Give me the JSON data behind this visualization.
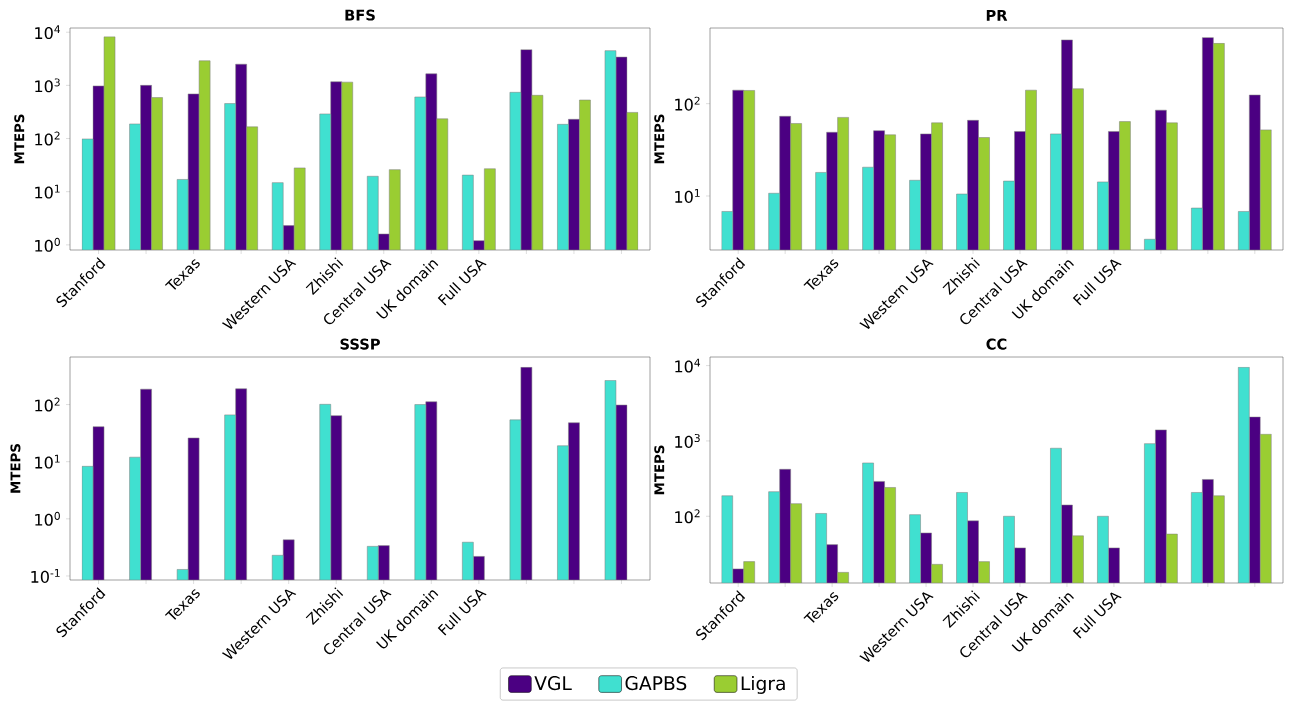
{
  "chart_data": [
    {
      "type": "bar",
      "title": "BFS",
      "ylabel": "MTEPS",
      "log": true,
      "categories": [
        "Stanford",
        null,
        "Texas",
        null,
        "Western USA",
        "Zhishi",
        "Central USA",
        "UK domain",
        "Full USA",
        null,
        null,
        null
      ],
      "series": [
        {
          "color": "#4b0082",
          "values": [
            975,
            1000,
            690,
            2500,
            2.3,
            1170,
            1.6,
            1650,
            1.2,
            4700,
            230,
            3400
          ]
        },
        {
          "color": "#40e0d0",
          "values": [
            98,
            188,
            17,
            455,
            14.8,
            290,
            19.5,
            605,
            20.5,
            740,
            185,
            4500
          ]
        },
        {
          "color": "#9acd32",
          "values": [
            8200,
            590,
            2900,
            166,
            28,
            1150,
            26,
            235,
            27,
            650,
            530,
            310
          ]
        }
      ],
      "ylim": [
        0.8,
        12000
      ],
      "yticks": [
        {
          "value": 1,
          "label": "10$^{0}$"
        },
        {
          "value": 10,
          "label": "10$^{1}$"
        },
        {
          "value": 100,
          "label": "10$^{2}$"
        },
        {
          "value": 1000,
          "label": "10$^{3}$"
        },
        {
          "value": 10000,
          "label": "10$^{4}$"
        }
      ]
    },
    {
      "type": "bar",
      "title": "PR",
      "ylabel": "MTEPS",
      "log": true,
      "categories": [
        "Stanford",
        null,
        "Texas",
        null,
        "Western USA",
        "Zhishi",
        "Central USA",
        "UK domain",
        "Full USA",
        null,
        null,
        null
      ],
      "series": [
        {
          "color": "#4b0082",
          "values": [
            140,
            73,
            49,
            51,
            47,
            66,
            50,
            490,
            50,
            85,
            520,
            124
          ]
        },
        {
          "color": "#40e0d0",
          "values": [
            6.8,
            10.7,
            18,
            20.5,
            14.8,
            10.5,
            14.5,
            47,
            14.2,
            3.4,
            7.4,
            6.8
          ]
        },
        {
          "color": "#9acd32",
          "values": [
            139,
            61,
            71,
            46,
            62,
            43,
            140,
            145,
            64,
            62,
            450,
            52
          ]
        }
      ],
      "ylim": [
        2.6,
        660
      ],
      "yticks": [
        {
          "value": 10,
          "label": "10$^{1}$"
        },
        {
          "value": 100,
          "label": "10$^{2}$"
        }
      ]
    },
    {
      "type": "bar",
      "title": "SSSP",
      "ylabel": "MTEPS",
      "log": true,
      "categories": [
        "Stanford",
        null,
        "Texas",
        null,
        "Western USA",
        "Zhishi",
        "Central USA",
        "UK domain",
        "Full USA",
        null,
        null,
        null
      ],
      "series": [
        {
          "color": "#4b0082",
          "values": [
            41,
            186,
            26,
            189,
            0.43,
            64,
            0.34,
            112,
            0.22,
            450,
            48,
            98
          ]
        },
        {
          "color": "#40e0d0",
          "values": [
            8.3,
            12,
            0.13,
            66,
            0.23,
            101,
            0.33,
            100,
            0.39,
            54,
            19,
            265
          ]
        }
      ],
      "ylim": [
        0.085,
        680
      ],
      "yticks": [
        {
          "value": 0.1,
          "label": "10$^{-1}$"
        },
        {
          "value": 1,
          "label": "10$^{0}$"
        },
        {
          "value": 10,
          "label": "10$^{1}$"
        },
        {
          "value": 100,
          "label": "10$^{2}$"
        }
      ]
    },
    {
      "type": "bar",
      "title": "CC",
      "ylabel": "MTEPS",
      "log": true,
      "legend": "bottom",
      "categories": [
        "Stanford",
        null,
        "Texas",
        null,
        "Western USA",
        "Zhishi",
        "Central USA",
        "UK domain",
        "Full USA",
        null,
        null,
        null
      ],
      "series": [
        {
          "name": "VGL",
          "color": "#4b0082",
          "values": [
            20,
            420,
            42,
            290,
            60,
            87,
            38,
            141,
            38,
            1400,
            308,
            2080
          ]
        },
        {
          "name": "GAPBS",
          "color": "#40e0d0",
          "values": [
            187,
            212,
            109,
            510,
            105,
            207,
            100,
            800,
            100,
            920,
            207,
            9500
          ]
        },
        {
          "name": "Ligra",
          "color": "#9acd32",
          "values": [
            25,
            147,
            18,
            241,
            23,
            25,
            null,
            55,
            null,
            58,
            187,
            1230
          ]
        }
      ],
      "ylim": [
        13,
        13000
      ],
      "yticks": [
        {
          "value": 100,
          "label": "10$^{2}$"
        },
        {
          "value": 1000,
          "label": "10$^{3}$"
        },
        {
          "value": 10000,
          "label": "10$^{4}$"
        }
      ]
    }
  ]
}
